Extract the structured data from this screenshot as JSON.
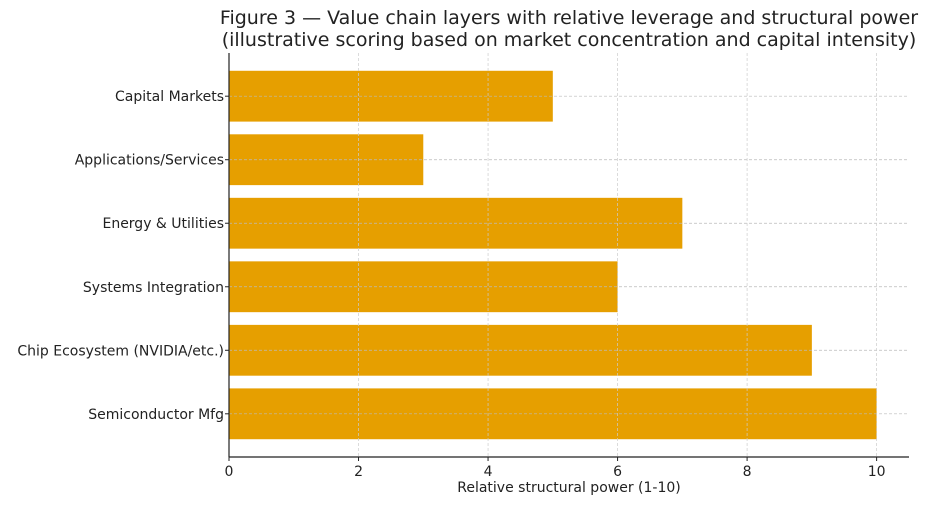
{
  "chart_data": {
    "type": "bar",
    "orientation": "horizontal",
    "title": "Figure 3 — Value chain layers with relative leverage and structural power",
    "subtitle": "(illustrative scoring based on market concentration and capital intensity)",
    "xlabel": "Relative structural power (1-10)",
    "ylabel": "",
    "categories": [
      "Semiconductor Mfg",
      "Chip Ecosystem (NVIDIA/etc.)",
      "Systems Integration",
      "Energy & Utilities",
      "Applications/Services",
      "Capital Markets"
    ],
    "values": [
      10,
      9,
      6,
      7,
      3,
      5
    ],
    "xlim": [
      0,
      10.5
    ],
    "xticks": [
      "0",
      "2",
      "4",
      "6",
      "8",
      "10"
    ],
    "grid": true,
    "bar_color": "#E69F00"
  }
}
